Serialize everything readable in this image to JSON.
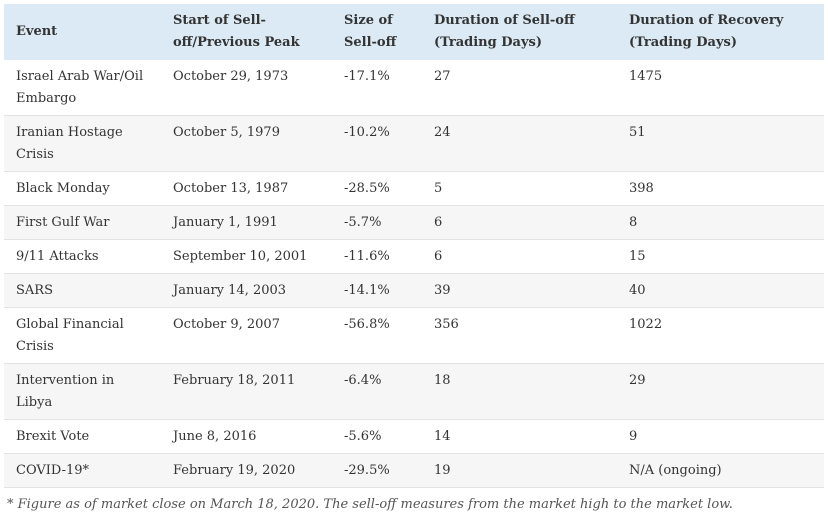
{
  "table": {
    "headers": [
      "Event",
      "Start of Sell-off/Previous Peak",
      "Size of Sell-off",
      "Duration of Sell-off (Trading Days)",
      "Duration of Recovery (Trading Days)"
    ],
    "rows": [
      [
        "Israel Arab War/Oil Embargo",
        "October 29, 1973",
        "-17.1%",
        "27",
        "1475"
      ],
      [
        "Iranian Hostage Crisis",
        "October 5, 1979",
        "-10.2%",
        "24",
        "51"
      ],
      [
        "Black Monday",
        "October 13, 1987",
        "-28.5%",
        "5",
        "398"
      ],
      [
        "First Gulf War",
        "January 1, 1991",
        "-5.7%",
        "6",
        "8"
      ],
      [
        "9/11 Attacks",
        "September 10, 2001",
        "-11.6%",
        "6",
        "15"
      ],
      [
        "SARS",
        "January 14, 2003",
        "-14.1%",
        "39",
        "40"
      ],
      [
        "Global Financial Crisis",
        "October 9, 2007",
        "-56.8%",
        "356",
        "1022"
      ],
      [
        "Intervention in Libya",
        "February 18, 2011",
        "-6.4%",
        "18",
        "29"
      ],
      [
        "Brexit Vote",
        "June 8, 2016",
        "-5.6%",
        "14",
        "9"
      ],
      [
        "COVID-19*",
        "February 19, 2020",
        "-29.5%",
        "19",
        "N/A (ongoing)"
      ]
    ]
  },
  "footnote": "* Figure as of market close on March 18, 2020. The sell-off measures from the market high to the market low."
}
